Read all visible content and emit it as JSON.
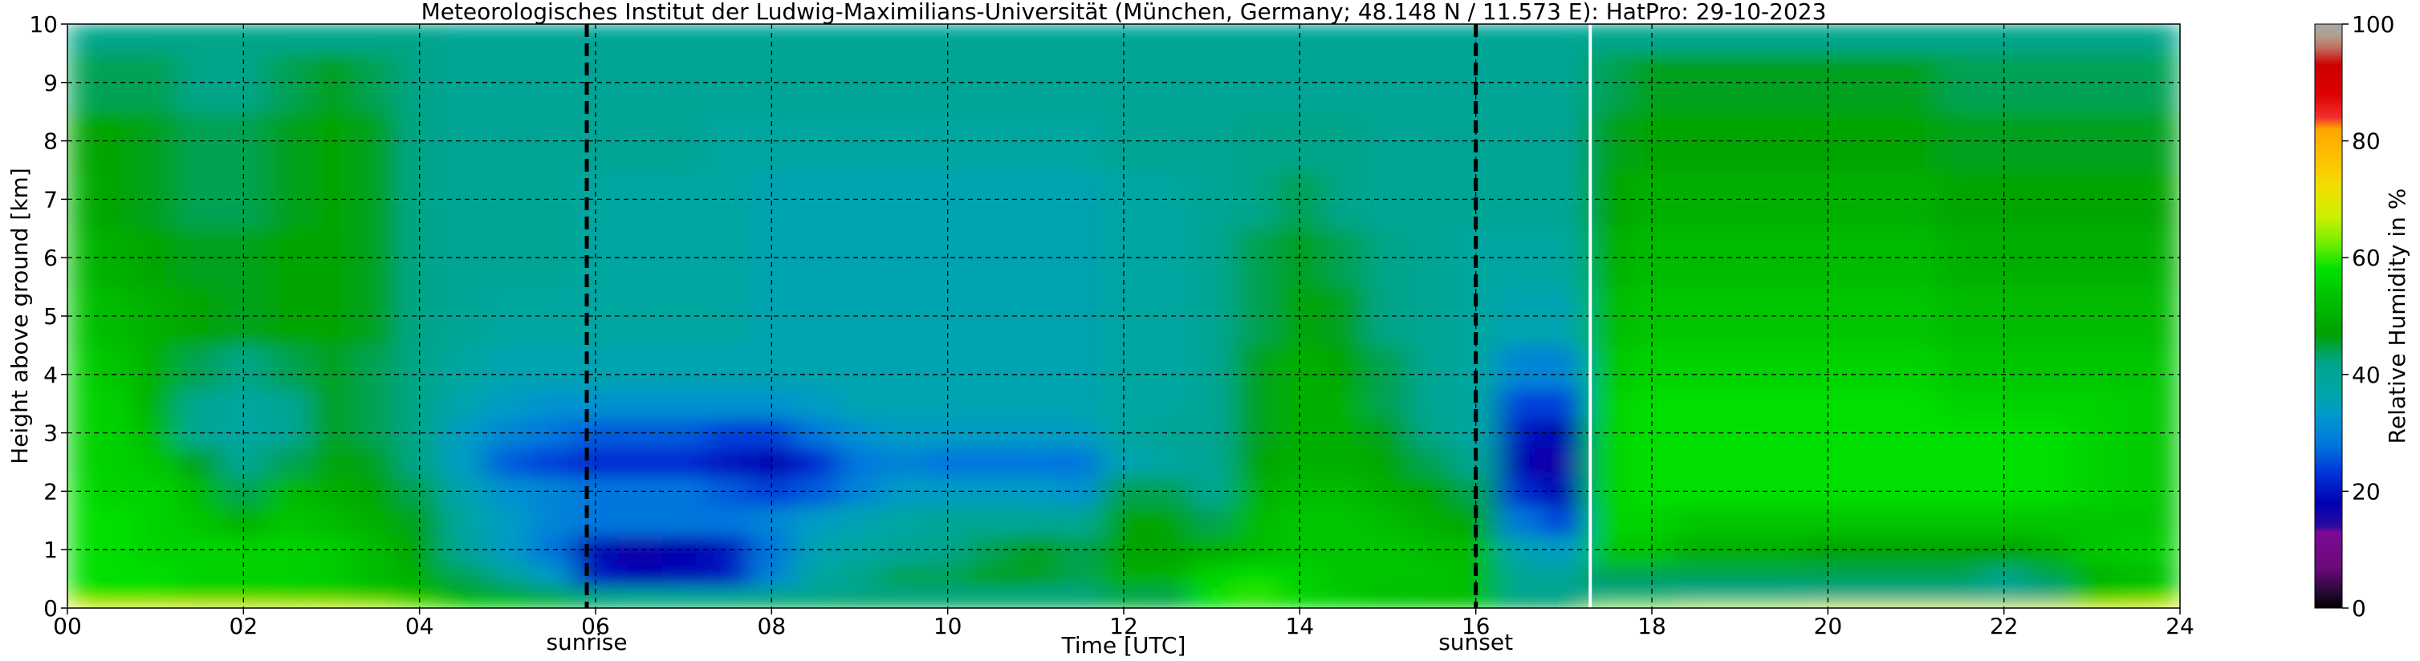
{
  "chart_data": {
    "type": "heatmap",
    "title": "Meteorologisches Institut der Ludwig-Maximilians-Universität (München, Germany; 48.148 N / 11.573 E):    HatPro: 29-10-2023",
    "xlabel": "Time [UTC]",
    "ylabel": "Height above ground [km]",
    "xlim": [
      0,
      24
    ],
    "ylim": [
      0,
      10
    ],
    "x_ticks": [
      0,
      2,
      4,
      6,
      8,
      10,
      12,
      14,
      16,
      18,
      20,
      22,
      24
    ],
    "x_tick_labels": [
      "00",
      "02",
      "04",
      "06",
      "08",
      "10",
      "12",
      "14",
      "16",
      "18",
      "20",
      "22",
      "24"
    ],
    "y_ticks": [
      0,
      1,
      2,
      3,
      4,
      5,
      6,
      7,
      8,
      9,
      10
    ],
    "y_tick_labels": [
      "0",
      "1",
      "2",
      "3",
      "4",
      "5",
      "6",
      "7",
      "8",
      "9",
      "10"
    ],
    "grid": true,
    "markers": [
      {
        "label": "sunrise",
        "x": 5.9,
        "style": "dashed",
        "color": "#000000"
      },
      {
        "label": "sunset",
        "x": 16.0,
        "style": "dashed",
        "color": "#000000"
      },
      {
        "label": "",
        "x": 17.3,
        "style": "solid",
        "color": "#ffffff"
      }
    ],
    "colorbar": {
      "label": "Relative Humidity in %",
      "range": [
        0,
        100
      ],
      "ticks": [
        0,
        20,
        40,
        60,
        80,
        100
      ],
      "stops": [
        {
          "value": 0,
          "color": "#000000"
        },
        {
          "value": 3,
          "color": "#2a0a3a"
        },
        {
          "value": 7,
          "color": "#6b0a7a"
        },
        {
          "value": 13,
          "color": "#7a0a96"
        },
        {
          "value": 14,
          "color": "#2a0aa0"
        },
        {
          "value": 18,
          "color": "#0000b0"
        },
        {
          "value": 23,
          "color": "#0033d9"
        },
        {
          "value": 28,
          "color": "#0077dd"
        },
        {
          "value": 33,
          "color": "#0099cc"
        },
        {
          "value": 37,
          "color": "#00a6a6"
        },
        {
          "value": 42,
          "color": "#00a58a"
        },
        {
          "value": 47,
          "color": "#00a000"
        },
        {
          "value": 53,
          "color": "#00c000"
        },
        {
          "value": 58,
          "color": "#00e000"
        },
        {
          "value": 62,
          "color": "#66ee00"
        },
        {
          "value": 67,
          "color": "#ccf000"
        },
        {
          "value": 72,
          "color": "#f0e000"
        },
        {
          "value": 77,
          "color": "#ffc000"
        },
        {
          "value": 82,
          "color": "#ffa500"
        },
        {
          "value": 84,
          "color": "#f03030"
        },
        {
          "value": 88,
          "color": "#dd0000"
        },
        {
          "value": 93,
          "color": "#cc0000"
        },
        {
          "value": 96,
          "color": "#c07060"
        },
        {
          "value": 98,
          "color": "#b0a090"
        },
        {
          "value": 100,
          "color": "#a8a8a8"
        }
      ]
    },
    "x_times": [
      0,
      0.5,
      1,
      1.5,
      2,
      2.5,
      3,
      3.5,
      4,
      4.5,
      5,
      5.5,
      6,
      6.5,
      7,
      7.5,
      8,
      8.5,
      9,
      9.5,
      10,
      10.5,
      11,
      11.5,
      12,
      12.5,
      13,
      13.5,
      14,
      14.5,
      15,
      15.5,
      16,
      16.5,
      17,
      17.5,
      18,
      18.5,
      19,
      19.5,
      20,
      20.5,
      21,
      21.5,
      22,
      22.5,
      23,
      23.5,
      24
    ],
    "y_heights": [
      0,
      0.25,
      0.5,
      1,
      1.5,
      2,
      2.5,
      3,
      3.5,
      4,
      5,
      6,
      7,
      8,
      9,
      10
    ],
    "rh_by_height": [
      [
        72,
        70,
        70,
        70,
        70,
        68,
        68,
        66,
        62,
        58,
        56,
        52,
        48,
        48,
        48,
        48,
        48,
        48,
        46,
        46,
        46,
        46,
        46,
        46,
        50,
        48,
        58,
        58,
        58,
        58,
        56,
        55,
        54,
        46,
        46,
        64,
        64,
        66,
        66,
        66,
        68,
        68,
        68,
        68,
        68,
        68,
        68,
        70,
        72
      ],
      [
        60,
        58,
        58,
        56,
        56,
        56,
        55,
        54,
        52,
        48,
        46,
        44,
        40,
        38,
        38,
        38,
        40,
        40,
        42,
        42,
        42,
        42,
        42,
        42,
        44,
        44,
        58,
        60,
        56,
        54,
        52,
        52,
        52,
        40,
        40,
        40,
        40,
        38,
        38,
        38,
        38,
        38,
        38,
        38,
        38,
        40,
        54,
        56,
        58
      ],
      [
        58,
        58,
        58,
        56,
        56,
        56,
        55,
        52,
        50,
        44,
        40,
        34,
        20,
        18,
        19,
        20,
        30,
        38,
        42,
        44,
        44,
        46,
        46,
        44,
        50,
        50,
        56,
        58,
        56,
        54,
        54,
        54,
        52,
        40,
        40,
        44,
        44,
        44,
        44,
        44,
        44,
        44,
        44,
        44,
        42,
        44,
        50,
        52,
        54
      ],
      [
        58,
        58,
        56,
        56,
        56,
        56,
        55,
        52,
        48,
        40,
        34,
        28,
        19,
        17,
        18,
        20,
        28,
        36,
        38,
        40,
        42,
        44,
        46,
        44,
        48,
        48,
        50,
        52,
        54,
        54,
        54,
        52,
        52,
        36,
        34,
        54,
        54,
        50,
        50,
        50,
        48,
        48,
        48,
        48,
        48,
        50,
        54,
        55,
        56
      ],
      [
        58,
        58,
        56,
        54,
        50,
        54,
        52,
        50,
        46,
        38,
        34,
        30,
        28,
        28,
        28,
        28,
        30,
        34,
        36,
        38,
        40,
        40,
        40,
        40,
        48,
        48,
        44,
        52,
        54,
        54,
        52,
        50,
        48,
        28,
        24,
        56,
        56,
        54,
        54,
        54,
        54,
        54,
        54,
        54,
        54,
        54,
        54,
        54,
        54
      ],
      [
        58,
        56,
        56,
        52,
        44,
        52,
        50,
        48,
        44,
        36,
        32,
        30,
        28,
        28,
        28,
        26,
        24,
        26,
        30,
        34,
        34,
        34,
        34,
        32,
        44,
        44,
        40,
        50,
        52,
        52,
        50,
        48,
        44,
        22,
        18,
        56,
        58,
        58,
        58,
        58,
        58,
        58,
        58,
        58,
        58,
        58,
        56,
        55,
        54
      ],
      [
        56,
        56,
        54,
        46,
        40,
        44,
        48,
        46,
        42,
        34,
        26,
        24,
        22,
        22,
        22,
        20,
        18,
        22,
        28,
        30,
        28,
        28,
        28,
        28,
        36,
        38,
        40,
        48,
        50,
        50,
        48,
        44,
        40,
        18,
        16,
        56,
        58,
        58,
        58,
        58,
        58,
        58,
        58,
        58,
        58,
        58,
        56,
        55,
        54
      ],
      [
        56,
        56,
        52,
        40,
        38,
        40,
        46,
        44,
        42,
        34,
        30,
        28,
        26,
        26,
        26,
        24,
        24,
        28,
        32,
        34,
        34,
        34,
        34,
        34,
        38,
        40,
        40,
        46,
        50,
        50,
        46,
        42,
        38,
        20,
        18,
        56,
        58,
        58,
        58,
        58,
        58,
        58,
        58,
        58,
        58,
        58,
        56,
        55,
        54
      ],
      [
        56,
        56,
        50,
        40,
        38,
        40,
        46,
        44,
        42,
        36,
        34,
        32,
        32,
        32,
        32,
        32,
        32,
        34,
        36,
        36,
        36,
        36,
        36,
        36,
        38,
        38,
        40,
        46,
        50,
        50,
        44,
        40,
        38,
        24,
        24,
        56,
        58,
        58,
        58,
        58,
        58,
        58,
        58,
        56,
        56,
        56,
        56,
        55,
        54
      ],
      [
        56,
        54,
        50,
        44,
        42,
        44,
        46,
        44,
        42,
        38,
        36,
        36,
        36,
        36,
        36,
        36,
        36,
        36,
        36,
        36,
        36,
        36,
        36,
        36,
        38,
        38,
        40,
        46,
        50,
        48,
        44,
        40,
        38,
        30,
        30,
        54,
        56,
        56,
        56,
        56,
        56,
        56,
        56,
        54,
        54,
        54,
        54,
        54,
        54
      ],
      [
        54,
        52,
        50,
        48,
        46,
        48,
        48,
        46,
        42,
        40,
        38,
        38,
        38,
        38,
        38,
        38,
        36,
        36,
        36,
        36,
        36,
        36,
        36,
        36,
        38,
        38,
        40,
        44,
        48,
        46,
        42,
        40,
        38,
        36,
        36,
        52,
        54,
        54,
        54,
        54,
        54,
        54,
        54,
        52,
        52,
        52,
        52,
        52,
        52
      ],
      [
        52,
        50,
        48,
        46,
        46,
        48,
        48,
        46,
        42,
        40,
        40,
        40,
        38,
        38,
        38,
        38,
        36,
        36,
        36,
        36,
        36,
        36,
        36,
        36,
        38,
        38,
        40,
        44,
        46,
        44,
        42,
        40,
        38,
        38,
        38,
        50,
        52,
        52,
        52,
        52,
        52,
        52,
        52,
        50,
        50,
        50,
        50,
        50,
        50
      ],
      [
        50,
        48,
        46,
        44,
        44,
        46,
        48,
        46,
        42,
        40,
        40,
        40,
        38,
        38,
        38,
        38,
        36,
        36,
        36,
        36,
        36,
        36,
        36,
        36,
        38,
        38,
        40,
        42,
        44,
        42,
        40,
        40,
        40,
        40,
        40,
        48,
        50,
        50,
        50,
        50,
        50,
        50,
        50,
        48,
        48,
        48,
        48,
        48,
        48
      ],
      [
        48,
        48,
        46,
        44,
        44,
        46,
        48,
        46,
        42,
        40,
        40,
        40,
        40,
        40,
        40,
        38,
        38,
        38,
        38,
        38,
        38,
        38,
        38,
        38,
        40,
        40,
        40,
        42,
        42,
        42,
        40,
        40,
        40,
        40,
        40,
        46,
        48,
        48,
        48,
        48,
        48,
        48,
        48,
        46,
        46,
        46,
        46,
        46,
        46
      ],
      [
        44,
        44,
        44,
        42,
        42,
        44,
        46,
        44,
        42,
        40,
        40,
        40,
        40,
        40,
        40,
        40,
        40,
        40,
        40,
        40,
        40,
        40,
        40,
        40,
        40,
        40,
        40,
        40,
        40,
        40,
        40,
        40,
        40,
        40,
        40,
        44,
        46,
        46,
        46,
        46,
        46,
        46,
        46,
        44,
        44,
        44,
        44,
        44,
        44
      ],
      [
        42,
        42,
        42,
        42,
        42,
        42,
        42,
        42,
        42,
        40,
        40,
        40,
        40,
        40,
        40,
        40,
        40,
        40,
        40,
        40,
        40,
        40,
        40,
        40,
        40,
        40,
        40,
        40,
        40,
        40,
        40,
        40,
        40,
        40,
        40,
        42,
        42,
        42,
        42,
        42,
        42,
        42,
        42,
        42,
        42,
        42,
        42,
        42,
        42
      ]
    ]
  }
}
